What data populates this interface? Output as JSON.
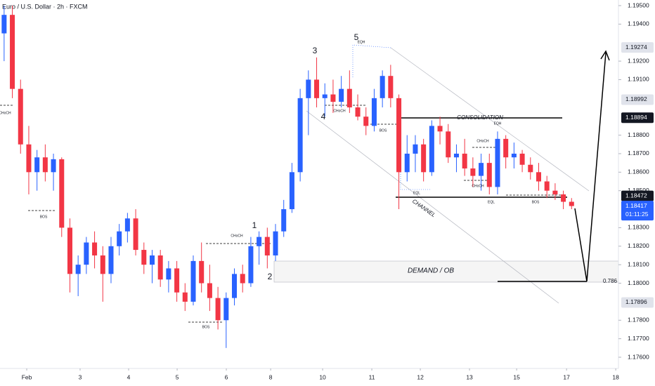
{
  "chart_data": {
    "type": "candlestick",
    "title": "Euro / U.S. Dollar · 2h · FXCM",
    "up_color": "#2962ff",
    "down_color": "#f23645",
    "grid": false,
    "xlim": [
      -0.5,
      74.7
    ],
    "ylim": [
      1.176,
      1.195
    ],
    "x": [
      0,
      1,
      2,
      3,
      4,
      5,
      6,
      7,
      8,
      9,
      10,
      11,
      12,
      13,
      14,
      15,
      16,
      17,
      18,
      19,
      20,
      21,
      22,
      23,
      24,
      25,
      26,
      27,
      28,
      29,
      30,
      31,
      32,
      33,
      34,
      35,
      36,
      37,
      38,
      39,
      40,
      41,
      42,
      43,
      44,
      45,
      46,
      47,
      48,
      49,
      50,
      51,
      52,
      53,
      54,
      55,
      56,
      57,
      58,
      59,
      60,
      61,
      62,
      63,
      64,
      65,
      66,
      67,
      68,
      69
    ],
    "ohlc": [
      [
        1.1935,
        1.195,
        1.192,
        1.1945
      ],
      [
        1.1945,
        1.195,
        1.19,
        1.1905
      ],
      [
        1.1905,
        1.191,
        1.187,
        1.1875
      ],
      [
        1.1875,
        1.1885,
        1.1848,
        1.186
      ],
      [
        1.186,
        1.1872,
        1.185,
        1.1868
      ],
      [
        1.1868,
        1.1875,
        1.1855,
        1.186
      ],
      [
        1.186,
        1.187,
        1.185,
        1.1867
      ],
      [
        1.1867,
        1.1868,
        1.1825,
        1.183
      ],
      [
        1.183,
        1.1835,
        1.1795,
        1.1805
      ],
      [
        1.1805,
        1.1815,
        1.1793,
        1.181
      ],
      [
        1.181,
        1.1825,
        1.1805,
        1.1822
      ],
      [
        1.1822,
        1.1828,
        1.1808,
        1.1815
      ],
      [
        1.1815,
        1.182,
        1.179,
        1.1805
      ],
      [
        1.1805,
        1.1825,
        1.18,
        1.182
      ],
      [
        1.182,
        1.1832,
        1.1815,
        1.1828
      ],
      [
        1.1828,
        1.1838,
        1.1822,
        1.1835
      ],
      [
        1.1835,
        1.184,
        1.1815,
        1.1818
      ],
      [
        1.1818,
        1.1822,
        1.1805,
        1.181
      ],
      [
        1.181,
        1.1818,
        1.18,
        1.1815
      ],
      [
        1.1815,
        1.1818,
        1.1798,
        1.1802
      ],
      [
        1.1802,
        1.1812,
        1.1795,
        1.1808
      ],
      [
        1.1808,
        1.1812,
        1.179,
        1.1795
      ],
      [
        1.1795,
        1.18,
        1.1785,
        1.179
      ],
      [
        1.179,
        1.1815,
        1.1788,
        1.1812
      ],
      [
        1.1812,
        1.1822,
        1.1795,
        1.18
      ],
      [
        1.18,
        1.181,
        1.1785,
        1.1792
      ],
      [
        1.1792,
        1.1798,
        1.1775,
        1.178
      ],
      [
        1.178,
        1.1795,
        1.1765,
        1.1792
      ],
      [
        1.1792,
        1.1808,
        1.1788,
        1.1805
      ],
      [
        1.1805,
        1.181,
        1.1795,
        1.18
      ],
      [
        1.18,
        1.1825,
        1.1798,
        1.182
      ],
      [
        1.182,
        1.1828,
        1.181,
        1.1825
      ],
      [
        1.1825,
        1.183,
        1.1808,
        1.1815
      ],
      [
        1.1815,
        1.1832,
        1.1812,
        1.1828
      ],
      [
        1.1828,
        1.1845,
        1.1825,
        1.184
      ],
      [
        1.184,
        1.1865,
        1.1838,
        1.186
      ],
      [
        1.186,
        1.1905,
        1.1855,
        1.19
      ],
      [
        1.19,
        1.1915,
        1.188,
        1.191
      ],
      [
        1.191,
        1.1922,
        1.1895,
        1.19
      ],
      [
        1.19,
        1.1908,
        1.189,
        1.1902
      ],
      [
        1.1902,
        1.191,
        1.1892,
        1.1898
      ],
      [
        1.1898,
        1.1912,
        1.1895,
        1.1905
      ],
      [
        1.1905,
        1.1915,
        1.1892,
        1.1895
      ],
      [
        1.1895,
        1.1902,
        1.1888,
        1.189
      ],
      [
        1.189,
        1.1895,
        1.188,
        1.1885
      ],
      [
        1.1885,
        1.1905,
        1.1882,
        1.19
      ],
      [
        1.19,
        1.1915,
        1.1895,
        1.1912
      ],
      [
        1.1912,
        1.1918,
        1.1895,
        1.19
      ],
      [
        1.19,
        1.1902,
        1.184,
        1.186
      ],
      [
        1.186,
        1.188,
        1.1855,
        1.187
      ],
      [
        1.187,
        1.188,
        1.186,
        1.1875
      ],
      [
        1.1875,
        1.1878,
        1.1855,
        1.186
      ],
      [
        1.186,
        1.1888,
        1.1858,
        1.1885
      ],
      [
        1.1885,
        1.189,
        1.1875,
        1.1882
      ],
      [
        1.1882,
        1.1886,
        1.1865,
        1.1868
      ],
      [
        1.1868,
        1.1875,
        1.186,
        1.187
      ],
      [
        1.187,
        1.1878,
        1.1858,
        1.1862
      ],
      [
        1.1862,
        1.1868,
        1.1852,
        1.1858
      ],
      [
        1.1858,
        1.187,
        1.185,
        1.1865
      ],
      [
        1.1865,
        1.187,
        1.1848,
        1.1852
      ],
      [
        1.1852,
        1.1882,
        1.1848,
        1.1878
      ],
      [
        1.1878,
        1.188,
        1.1862,
        1.1868
      ],
      [
        1.1868,
        1.1876,
        1.1862,
        1.187
      ],
      [
        1.187,
        1.1872,
        1.186,
        1.1864
      ],
      [
        1.1864,
        1.1868,
        1.1856,
        1.186
      ],
      [
        1.186,
        1.1865,
        1.185,
        1.1855
      ],
      [
        1.1855,
        1.1858,
        1.1846,
        1.185
      ],
      [
        1.185,
        1.1854,
        1.1845,
        1.1848
      ],
      [
        1.1848,
        1.185,
        1.184,
        1.1844
      ],
      [
        1.1844,
        1.1846,
        1.184,
        1.18417
      ]
    ],
    "xticks": [
      {
        "value": 2.75,
        "label": "Feb"
      },
      {
        "value": 9.24,
        "label": "3"
      },
      {
        "value": 15.14,
        "label": "4"
      },
      {
        "value": 21.04,
        "label": "5"
      },
      {
        "value": 27.02,
        "label": "6"
      },
      {
        "value": 32.41,
        "label": "8"
      },
      {
        "value": 38.73,
        "label": "10"
      },
      {
        "value": 44.71,
        "label": "11"
      },
      {
        "value": 50.61,
        "label": "12"
      },
      {
        "value": 56.59,
        "label": "13"
      },
      {
        "value": 62.32,
        "label": "15"
      },
      {
        "value": 68.39,
        "label": "17"
      },
      {
        "value": 74.37,
        "label": "18"
      }
    ],
    "yticks": [
      {
        "value": 1.195,
        "label": "1.19500"
      },
      {
        "value": 1.194,
        "label": "1.19400"
      },
      {
        "value": 1.192,
        "label": "1.19200"
      },
      {
        "value": 1.191,
        "label": "1.19100"
      },
      {
        "value": 1.188,
        "label": "1.18800"
      },
      {
        "value": 1.187,
        "label": "1.18700"
      },
      {
        "value": 1.186,
        "label": "1.18600"
      },
      {
        "value": 1.185,
        "label": "1.18500"
      },
      {
        "value": 1.183,
        "label": "1.18300"
      },
      {
        "value": 1.182,
        "label": "1.18200"
      },
      {
        "value": 1.181,
        "label": "1.18100"
      },
      {
        "value": 1.18,
        "label": "1.18000"
      },
      {
        "value": 1.178,
        "label": "1.17800"
      },
      {
        "value": 1.177,
        "label": "1.17700"
      },
      {
        "value": 1.176,
        "label": "1.17600"
      }
    ],
    "price_tags": [
      {
        "value": 1.19274,
        "style": "gray"
      },
      {
        "value": 1.18992,
        "style": "gray"
      },
      {
        "value": 1.18894,
        "style": "dark"
      },
      {
        "value": 1.18472,
        "style": "dark"
      },
      {
        "value": 1.18417,
        "style": "blue"
      },
      {
        "value": 1.17896,
        "style": "gray"
      }
    ],
    "countdown": "01:11:25",
    "annotations": [
      "1",
      "2",
      "3",
      "4",
      "5",
      "CHoCH",
      "CHoCH",
      "CHoCH",
      "CHoCH",
      "CHoCH",
      "BOS",
      "BOS",
      "BOS",
      "BOS",
      "EQH",
      "EQH",
      "EQL",
      "EQL",
      "CONSOLIDATION",
      "CHANNEL",
      "DEMAND / OB",
      "0.786"
    ]
  }
}
